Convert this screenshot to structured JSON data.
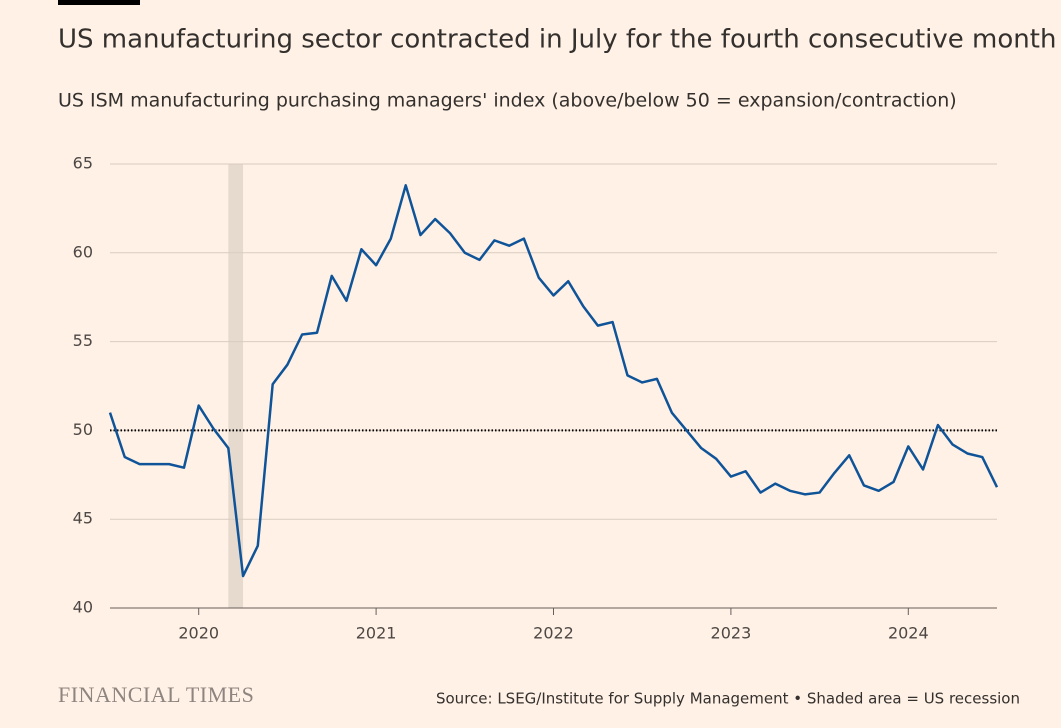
{
  "chart_data": {
    "type": "line",
    "title": "US manufacturing sector contracted in July for the fourth consecutive month",
    "subtitle": "US ISM manufacturing purchasing managers' index (above/below 50 = expansion/contraction)",
    "source": "Source: LSEG/Institute for Supply Management • Shaded area = US recession",
    "brand": "FINANCIAL TIMES",
    "x": [
      2019.5,
      2019.583,
      2019.667,
      2019.75,
      2019.833,
      2019.917,
      2020,
      2020.083,
      2020.167,
      2020.25,
      2020.333,
      2020.417,
      2020.5,
      2020.583,
      2020.667,
      2020.75,
      2020.833,
      2020.917,
      2021,
      2021.083,
      2021.167,
      2021.25,
      2021.333,
      2021.417,
      2021.5,
      2021.583,
      2021.667,
      2021.75,
      2021.833,
      2021.917,
      2022,
      2022.083,
      2022.167,
      2022.25,
      2022.333,
      2022.417,
      2022.5,
      2022.583,
      2022.667,
      2022.75,
      2022.833,
      2022.917,
      2023,
      2023.083,
      2023.167,
      2023.25,
      2023.333,
      2023.417,
      2023.5,
      2023.583,
      2023.667,
      2023.75,
      2023.833,
      2023.917,
      2024,
      2024.083,
      2024.167,
      2024.25,
      2024.333,
      2024.417,
      2024.5
    ],
    "series": [
      {
        "name": "ISM manufacturing PMI",
        "color": "#0f5499",
        "values": [
          51.0,
          48.5,
          48.1,
          48.1,
          48.1,
          47.9,
          51.4,
          50.1,
          49.0,
          41.8,
          43.5,
          52.6,
          53.7,
          55.4,
          55.5,
          58.7,
          57.3,
          60.2,
          59.3,
          60.8,
          63.8,
          61.0,
          61.9,
          61.1,
          60.0,
          59.6,
          60.7,
          60.4,
          60.8,
          58.6,
          57.6,
          58.4,
          57.0,
          55.9,
          56.1,
          53.1,
          52.7,
          52.9,
          51.0,
          50.0,
          49.0,
          48.4,
          47.4,
          47.7,
          46.5,
          47.0,
          46.6,
          46.4,
          46.5,
          47.6,
          48.6,
          46.9,
          46.6,
          47.1,
          49.1,
          47.8,
          50.3,
          49.2,
          48.7,
          48.5,
          46.8
        ]
      }
    ],
    "recession": [
      2020.167,
      2020.25
    ],
    "reference_line": 50,
    "xlim": [
      2019.5,
      2024.5
    ],
    "xticks": [
      2020,
      2021,
      2022,
      2023,
      2024
    ],
    "ylim": [
      40,
      65
    ],
    "yticks": [
      40,
      45,
      50,
      55,
      60,
      65
    ],
    "grid": true
  }
}
